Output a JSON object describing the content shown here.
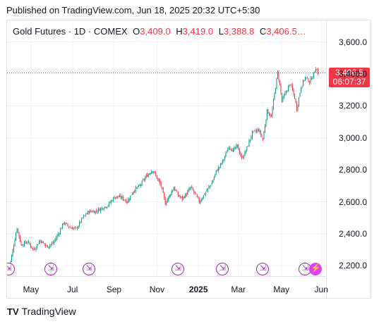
{
  "header": {
    "published": "Published on TradingView.com, Jun 18, 2025 20:32 UTC+5:30"
  },
  "legend": {
    "symbol": "Gold Futures · 1D · COMEX",
    "o_label": "O",
    "o_value": "3,409.0",
    "h_label": "H",
    "h_value": "3,419.0",
    "l_label": "L",
    "l_value": "3,388.8",
    "c_label": "C",
    "c_value": "3,406.5…"
  },
  "colors": {
    "up": "#089981",
    "down": "#f23645",
    "event": "#9c27b0"
  },
  "current_price": {
    "value": "3,406.5",
    "countdown": "06:07:37"
  },
  "chart_data": {
    "type": "candlestick",
    "y_ticks": [
      "3,600.0",
      "3,400.0",
      "3,200.0",
      "3,000.0",
      "2,800.0",
      "2,600.0",
      "2,400.0",
      "2,200.0"
    ],
    "y_tick_values": [
      3600,
      3400,
      3200,
      3000,
      2800,
      2600,
      2400,
      2200
    ],
    "ylim": [
      2135,
      3735
    ],
    "x_labels": [
      {
        "label": "May",
        "bold": false
      },
      {
        "label": "Jul",
        "bold": false
      },
      {
        "label": "Sep",
        "bold": false
      },
      {
        "label": "Nov",
        "bold": false
      },
      {
        "label": "2025",
        "bold": true
      },
      {
        "label": "Mar",
        "bold": false
      },
      {
        "label": "May",
        "bold": false
      },
      {
        "label": "Jun",
        "bold": false
      }
    ],
    "anchors": [
      [
        0,
        2160
      ],
      [
        5,
        2330
      ],
      [
        8,
        2440
      ],
      [
        12,
        2330
      ],
      [
        18,
        2350
      ],
      [
        24,
        2300
      ],
      [
        30,
        2360
      ],
      [
        36,
        2320
      ],
      [
        42,
        2340
      ],
      [
        48,
        2410
      ],
      [
        52,
        2470
      ],
      [
        58,
        2440
      ],
      [
        64,
        2430
      ],
      [
        70,
        2500
      ],
      [
        76,
        2540
      ],
      [
        82,
        2540
      ],
      [
        88,
        2560
      ],
      [
        94,
        2580
      ],
      [
        100,
        2630
      ],
      [
        106,
        2630
      ],
      [
        112,
        2600
      ],
      [
        118,
        2670
      ],
      [
        124,
        2700
      ],
      [
        130,
        2760
      ],
      [
        136,
        2800
      ],
      [
        140,
        2750
      ],
      [
        144,
        2700
      ],
      [
        148,
        2590
      ],
      [
        152,
        2640
      ],
      [
        156,
        2690
      ],
      [
        160,
        2640
      ],
      [
        164,
        2620
      ],
      [
        168,
        2650
      ],
      [
        172,
        2690
      ],
      [
        176,
        2650
      ],
      [
        180,
        2600
      ],
      [
        186,
        2660
      ],
      [
        192,
        2720
      ],
      [
        196,
        2790
      ],
      [
        200,
        2830
      ],
      [
        204,
        2880
      ],
      [
        208,
        2950
      ],
      [
        212,
        2920
      ],
      [
        216,
        2950
      ],
      [
        220,
        2870
      ],
      [
        224,
        2920
      ],
      [
        230,
        3030
      ],
      [
        236,
        3050
      ],
      [
        240,
        2990
      ],
      [
        244,
        3170
      ],
      [
        248,
        3130
      ],
      [
        250,
        3230
      ],
      [
        252,
        3320
      ],
      [
        254,
        3410
      ],
      [
        256,
        3330
      ],
      [
        258,
        3230
      ],
      [
        262,
        3290
      ],
      [
        266,
        3340
      ],
      [
        270,
        3250
      ],
      [
        272,
        3180
      ],
      [
        276,
        3320
      ],
      [
        280,
        3380
      ],
      [
        284,
        3350
      ],
      [
        288,
        3400
      ],
      [
        290,
        3440
      ],
      [
        292,
        3406
      ]
    ],
    "events": [
      {
        "x": 0,
        "kind": "split"
      },
      {
        "x": 40,
        "kind": "split"
      },
      {
        "x": 76,
        "kind": "split"
      },
      {
        "x": 160,
        "kind": "split"
      },
      {
        "x": 202,
        "kind": "split"
      },
      {
        "x": 240,
        "kind": "split"
      },
      {
        "x": 280,
        "kind": "split"
      },
      {
        "x": 290,
        "kind": "lightning"
      }
    ]
  },
  "footer": {
    "brand": "TradingView",
    "logo": "TV"
  }
}
